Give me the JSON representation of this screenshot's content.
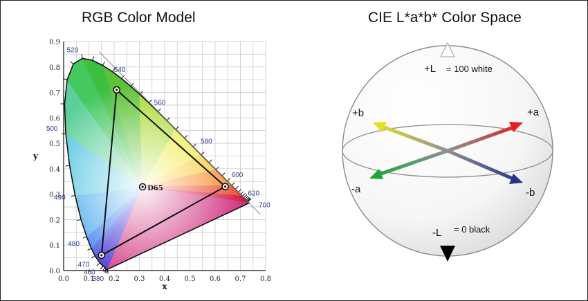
{
  "left_panel": {
    "title": "RGB Color Model",
    "x_axis_label": "x",
    "y_axis_label": "y",
    "x_ticks": [
      "0.0",
      "0.1",
      "0.2",
      "0.3",
      "0.4",
      "0.5",
      "0.6",
      "0.7",
      "0.8"
    ],
    "y_ticks": [
      "0.0",
      "0.1",
      "0.2",
      "0.3",
      "0.4",
      "0.5",
      "0.6",
      "0.7",
      "0.8",
      "0.9"
    ],
    "wavelengths": [
      {
        "label": "380",
        "x": 0.1741,
        "y": 0.005
      },
      {
        "label": "460",
        "x": 0.144,
        "y": 0.0297
      },
      {
        "label": "470",
        "x": 0.1241,
        "y": 0.0578
      },
      {
        "label": "480",
        "x": 0.0913,
        "y": 0.1327
      },
      {
        "label": "490",
        "x": 0.0454,
        "y": 0.295
      },
      {
        "label": "500",
        "x": 0.0082,
        "y": 0.5384
      },
      {
        "label": "520",
        "x": 0.0743,
        "y": 0.8338
      },
      {
        "label": "540",
        "x": 0.2296,
        "y": 0.7543
      },
      {
        "label": "560",
        "x": 0.3731,
        "y": 0.6245
      },
      {
        "label": "580",
        "x": 0.5125,
        "y": 0.4866
      },
      {
        "label": "600",
        "x": 0.627,
        "y": 0.3725
      },
      {
        "label": "620",
        "x": 0.6915,
        "y": 0.3083
      },
      {
        "label": "700",
        "x": 0.7347,
        "y": 0.2653
      }
    ],
    "white_point": {
      "label": "D65",
      "x": 0.3127,
      "y": 0.329
    },
    "gamut_triangle": [
      {
        "x": 0.64,
        "y": 0.33
      },
      {
        "x": 0.21,
        "y": 0.71
      },
      {
        "x": 0.15,
        "y": 0.06
      }
    ]
  },
  "right_panel": {
    "title": "CIE L*a*b* Color Space",
    "plus_l": "+L",
    "plus_l_suffix": "= 100 white",
    "minus_l": "-L",
    "minus_l_suffix": "= 0 black",
    "plus_a": "+a",
    "minus_a": "-a",
    "plus_b": "+b",
    "minus_b": "-b",
    "colors": {
      "plus_a": "#e02020",
      "minus_a": "#1aa83a",
      "plus_b": "#e6e020",
      "minus_b": "#23318f"
    }
  }
}
